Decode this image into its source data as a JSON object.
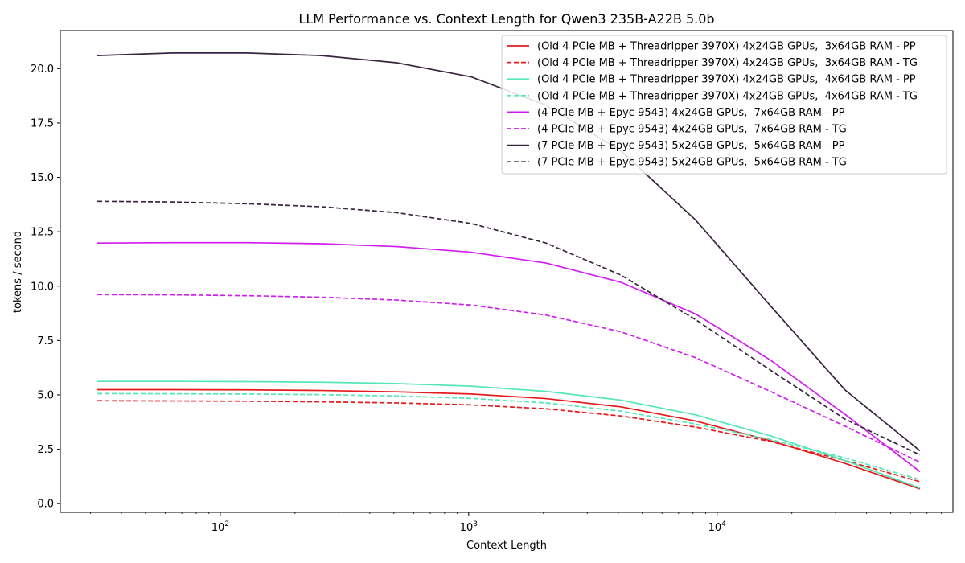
{
  "chart_data": {
    "type": "line",
    "title": "LLM Performance vs. Context Length for Qwen3 235B-A22B 5.0b",
    "xlabel": "Context Length",
    "ylabel": "tokens / second",
    "x_scale": "log",
    "xlim": [
      22.7,
      89000
    ],
    "ylim": [
      -0.4,
      21.75
    ],
    "x": [
      32,
      64,
      128,
      256,
      512,
      1024,
      2048,
      4096,
      8192,
      16384,
      32768,
      65536
    ],
    "x_ticks": [
      {
        "value": 100,
        "base": "10",
        "exp": "2"
      },
      {
        "value": 1000,
        "base": "10",
        "exp": "3"
      },
      {
        "value": 10000,
        "base": "10",
        "exp": "4"
      }
    ],
    "y_ticks": [
      {
        "value": 0,
        "label": "0.0"
      },
      {
        "value": 2.5,
        "label": "2.5"
      },
      {
        "value": 5,
        "label": "5.0"
      },
      {
        "value": 7.5,
        "label": "7.5"
      },
      {
        "value": 10,
        "label": "10.0"
      },
      {
        "value": 12.5,
        "label": "12.5"
      },
      {
        "value": 15,
        "label": "15.0"
      },
      {
        "value": 17.5,
        "label": "17.5"
      },
      {
        "value": 20,
        "label": "20.0"
      }
    ],
    "legend_position": "top-right",
    "grid": false,
    "series": [
      {
        "name": "(Old 4 PCIe MB + Threadripper 3970X) 4x24GB GPUs,  3x64GB RAM - PP",
        "color": "#e41a1c",
        "dash": "solid",
        "values": [
          5.24,
          5.24,
          5.23,
          5.2,
          5.14,
          5.04,
          4.83,
          4.45,
          3.8,
          2.9,
          1.85,
          0.68
        ]
      },
      {
        "name": "(Old 4 PCIe MB + Threadripper 3970X) 4x24GB GPUs,  3x64GB RAM - TG",
        "color": "#e41a1c",
        "dash": "dashed",
        "values": [
          4.73,
          4.72,
          4.71,
          4.68,
          4.63,
          4.54,
          4.36,
          4.03,
          3.52,
          2.86,
          1.98,
          1.01
        ]
      },
      {
        "name": "(Old 4 PCIe MB + Threadripper 3970X) 4x24GB GPUs,  4x64GB RAM - PP",
        "color": "#55e6b6",
        "dash": "solid",
        "values": [
          5.62,
          5.62,
          5.61,
          5.58,
          5.52,
          5.4,
          5.16,
          4.76,
          4.08,
          3.12,
          1.98,
          0.72
        ]
      },
      {
        "name": "(Old 4 PCIe MB + Threadripper 3970X) 4x24GB GPUs,  4x64GB RAM - TG",
        "color": "#55e6b6",
        "dash": "dashed",
        "values": [
          5.06,
          5.05,
          5.04,
          5.01,
          4.95,
          4.84,
          4.63,
          4.25,
          3.66,
          2.95,
          2.1,
          1.1
        ]
      },
      {
        "name": "(4 PCIe MB + Epyc 9543) 4x24GB GPUs,  7x64GB RAM - PP",
        "color": "#d11cf0",
        "dash": "solid",
        "values": [
          11.98,
          12.0,
          12.0,
          11.95,
          11.82,
          11.56,
          11.06,
          10.18,
          8.72,
          6.6,
          4.1,
          1.47
        ]
      },
      {
        "name": "(4 PCIe MB + Epyc 9543) 4x24GB GPUs,  7x64GB RAM - TG",
        "color": "#d11cf0",
        "dash": "dashed",
        "values": [
          9.61,
          9.6,
          9.56,
          9.49,
          9.36,
          9.13,
          8.67,
          7.9,
          6.71,
          5.16,
          3.56,
          1.9
        ]
      },
      {
        "name": "(7 PCIe MB + Epyc 9543) 5x24GB GPUs,  5x64GB RAM - PP",
        "color": "#3b2440",
        "dash": "solid",
        "values": [
          20.6,
          20.72,
          20.72,
          20.6,
          20.27,
          19.62,
          18.32,
          16.22,
          13.04,
          9.1,
          5.22,
          2.43
        ]
      },
      {
        "name": "(7 PCIe MB + Epyc 9543) 5x24GB GPUs,  5x64GB RAM - TG",
        "color": "#3b2440",
        "dash": "dashed",
        "values": [
          13.9,
          13.87,
          13.79,
          13.65,
          13.38,
          12.88,
          11.98,
          10.51,
          8.46,
          6.14,
          3.88,
          2.24
        ]
      }
    ]
  }
}
